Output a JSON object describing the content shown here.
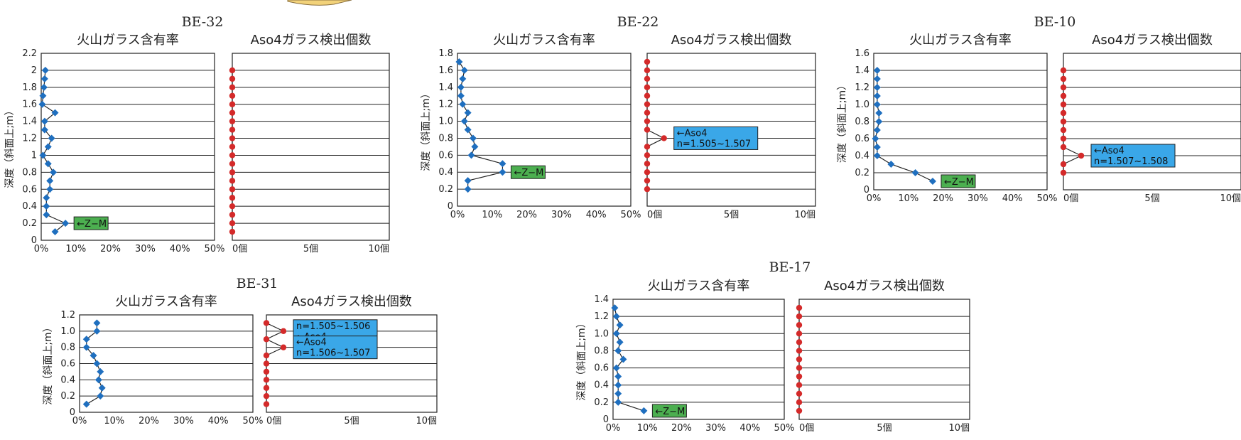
{
  "colors": {
    "glass": "#1f6fbf",
    "aso": "#d42a2a",
    "zm_box": "#4caf50",
    "aso_box": "#3aa7e8"
  },
  "chart_data": [
    {
      "type": "line",
      "station": "BE-32",
      "left_title": "火山ガラス含有率",
      "right_title": "Aso4ガラス検出個数",
      "ylabel": "深度（斜面上;m）",
      "y_ticks": [
        "0",
        "0.2",
        "0.4",
        "0.6",
        "0.8",
        "1",
        "1.2",
        "1.4",
        "1.6",
        "1.8",
        "2",
        "2.2"
      ],
      "ylim": [
        0,
        2.2
      ],
      "x_ticks": [
        "0%",
        "10%",
        "20%",
        "30%",
        "40%",
        "50%"
      ],
      "count_ticks": [
        "0個",
        "5個",
        "10個"
      ],
      "glass": {
        "depth": [
          0.1,
          0.2,
          0.3,
          0.4,
          0.5,
          0.6,
          0.7,
          0.8,
          0.9,
          1.0,
          1.1,
          1.2,
          1.3,
          1.4,
          1.5,
          1.6,
          1.7,
          1.8,
          1.9,
          2.0
        ],
        "pct": [
          4,
          7,
          1.5,
          1.5,
          1.5,
          2.5,
          2.5,
          3.5,
          2,
          0.5,
          2,
          3,
          1,
          1,
          4,
          0.3,
          0.5,
          0.8,
          1,
          1.2
        ]
      },
      "aso4": {
        "depth": [
          0.1,
          0.2,
          0.3,
          0.4,
          0.5,
          0.6,
          0.7,
          0.8,
          0.9,
          1.0,
          1.1,
          1.2,
          1.3,
          1.4,
          1.5,
          1.6,
          1.7,
          1.8,
          1.9,
          2.0
        ],
        "count": [
          0,
          0,
          0,
          0,
          0,
          0,
          0,
          0,
          0,
          0,
          0,
          0,
          0,
          0,
          0,
          0,
          0,
          0,
          0,
          0
        ]
      },
      "annotations": [
        {
          "kind": "zm",
          "text": "←Z−M",
          "depth": 0.2
        }
      ]
    },
    {
      "type": "line",
      "station": "BE-22",
      "left_title": "火山ガラス含有率",
      "right_title": "Aso4ガラス検出個数",
      "ylabel": "深度（斜面上;m）",
      "y_ticks": [
        "0",
        "0.2",
        "0.4",
        "0.6",
        "0.8",
        "1.0",
        "1.2",
        "1.4",
        "1.6",
        "1.8"
      ],
      "ylim": [
        0,
        1.8
      ],
      "x_ticks": [
        "0%",
        "10%",
        "20%",
        "30%",
        "40%",
        "50%"
      ],
      "count_ticks": [
        "0個",
        "5個",
        "10個"
      ],
      "glass": {
        "depth": [
          0.2,
          0.3,
          0.4,
          0.5,
          0.6,
          0.7,
          0.8,
          0.9,
          1.0,
          1.1,
          1.2,
          1.3,
          1.4,
          1.5,
          1.6,
          1.7
        ],
        "pct": [
          3,
          3,
          13,
          13,
          4,
          5,
          4.5,
          3,
          2,
          3,
          1.5,
          1,
          1,
          1.5,
          2,
          0.5
        ]
      },
      "aso4": {
        "depth": [
          0.2,
          0.3,
          0.4,
          0.5,
          0.6,
          0.7,
          0.8,
          0.9,
          1.0,
          1.1,
          1.2,
          1.3,
          1.4,
          1.5,
          1.6,
          1.7
        ],
        "count": [
          0,
          0,
          0,
          0,
          0,
          0,
          1,
          0,
          0,
          0,
          0,
          0,
          0,
          0,
          0,
          0
        ]
      },
      "annotations": [
        {
          "kind": "zm",
          "text": "←Z−M",
          "depth": 0.4
        },
        {
          "kind": "aso",
          "line1": "←Aso4",
          "line2": "n=1.505~1.507",
          "depth": 0.8
        }
      ]
    },
    {
      "type": "line",
      "station": "BE-10",
      "left_title": "火山ガラス含有率",
      "right_title": "Aso4ガラス検出個数",
      "ylabel": "深度（斜面上;m）",
      "y_ticks": [
        "0",
        "0.2",
        "0.4",
        "0.6",
        "0.8",
        "1.0",
        "1.2",
        "1.4",
        "1.6"
      ],
      "ylim": [
        0,
        1.6
      ],
      "x_ticks": [
        "0%",
        "10%",
        "20%",
        "30%",
        "40%",
        "50%"
      ],
      "count_ticks": [
        "0個",
        "5個",
        "10個"
      ],
      "glass": {
        "depth": [
          0.1,
          0.2,
          0.3,
          0.4,
          0.5,
          0.6,
          0.7,
          0.8,
          0.9,
          1.0,
          1.1,
          1.2,
          1.3,
          1.4
        ],
        "pct": [
          17,
          12,
          5,
          1,
          1,
          0.5,
          1,
          1.5,
          1.5,
          1,
          1,
          1,
          1,
          1
        ]
      },
      "aso4": {
        "depth": [
          0.2,
          0.3,
          0.4,
          0.5,
          0.6,
          0.7,
          0.8,
          0.9,
          1.0,
          1.1,
          1.2,
          1.3,
          1.4
        ],
        "count": [
          0,
          0,
          1,
          0,
          0,
          0,
          0,
          0,
          0,
          0,
          0,
          0,
          0
        ]
      },
      "annotations": [
        {
          "kind": "zm",
          "text": "←Z−M",
          "depth": 0.1
        },
        {
          "kind": "aso",
          "line1": "←Aso4",
          "line2": "n=1.507~1.508",
          "depth": 0.4
        }
      ]
    },
    {
      "type": "line",
      "station": "BE-31",
      "left_title": "火山ガラス含有率",
      "right_title": "Aso4ガラス検出個数",
      "ylabel": "深度（斜面上;m）",
      "y_ticks": [
        "0",
        "0.2",
        "0.4",
        "0.6",
        "0.8",
        "1.0",
        "1.2"
      ],
      "ylim": [
        0,
        1.2
      ],
      "x_ticks": [
        "0%",
        "10%",
        "20%",
        "30%",
        "40%",
        "50%"
      ],
      "count_ticks": [
        "0個",
        "5個",
        "10個"
      ],
      "glass": {
        "depth": [
          0.1,
          0.2,
          0.3,
          0.4,
          0.5,
          0.6,
          0.7,
          0.8,
          0.9,
          1.0,
          1.1
        ],
        "pct": [
          2,
          6,
          6.5,
          5.5,
          6,
          5,
          4,
          2,
          2,
          5,
          5
        ]
      },
      "aso4": {
        "depth": [
          0.1,
          0.2,
          0.3,
          0.4,
          0.5,
          0.6,
          0.7,
          0.8,
          0.9,
          1.0,
          1.1
        ],
        "count": [
          0,
          0,
          0,
          0,
          0,
          0,
          0,
          1,
          0,
          1,
          0
        ]
      },
      "annotations": [
        {
          "kind": "aso",
          "line1": "n=1.505~1.506",
          "line2": "←Aso4",
          "depth": 1.0
        },
        {
          "kind": "aso",
          "line1": "←Aso4",
          "line2": "n=1.506~1.507",
          "depth": 0.8
        }
      ]
    },
    {
      "type": "line",
      "station": "BE-17",
      "left_title": "火山ガラス含有率",
      "right_title": "Aso4ガラス検出個数",
      "ylabel": "深度（斜面上;m）",
      "y_ticks": [
        "0",
        "0.2",
        "0.4",
        "0.6",
        "0.8",
        "1.0",
        "1.2",
        "1.4"
      ],
      "ylim": [
        0,
        1.4
      ],
      "x_ticks": [
        "0%",
        "10%",
        "20%",
        "30%",
        "40%",
        "50%"
      ],
      "count_ticks": [
        "0個",
        "5個",
        "10個"
      ],
      "glass": {
        "depth": [
          0.1,
          0.2,
          0.3,
          0.4,
          0.5,
          0.6,
          0.7,
          0.8,
          0.9,
          1.0,
          1.1,
          1.2,
          1.3
        ],
        "pct": [
          9,
          1.5,
          1.5,
          1.5,
          1.5,
          1,
          3,
          1.5,
          2,
          1,
          2,
          1,
          0.5
        ]
      },
      "aso4": {
        "depth": [
          0.1,
          0.2,
          0.3,
          0.4,
          0.5,
          0.6,
          0.7,
          0.8,
          0.9,
          1.0,
          1.1,
          1.2,
          1.3
        ],
        "count": [
          0,
          0,
          0,
          0,
          0,
          0,
          0,
          0,
          0,
          0,
          0,
          0,
          0
        ]
      },
      "annotations": [
        {
          "kind": "zm",
          "text": "←Z−M",
          "depth": 0.1
        }
      ]
    }
  ]
}
